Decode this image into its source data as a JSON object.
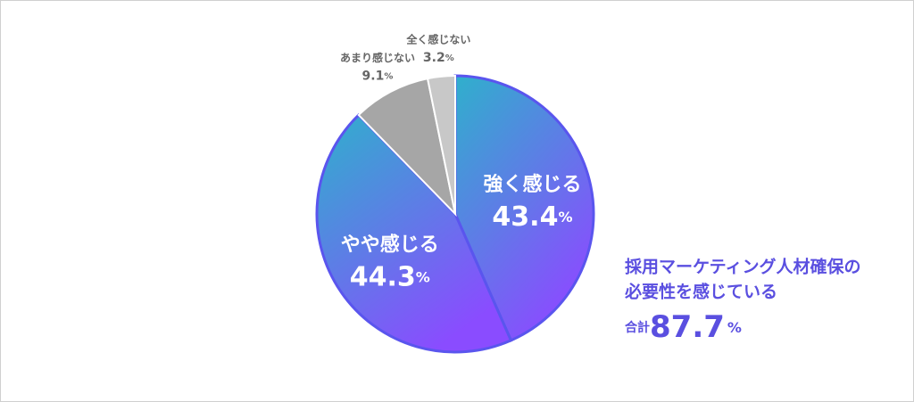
{
  "chart_data": {
    "type": "pie",
    "categories": [
      "強く感じる",
      "やや感じる",
      "あまり感じない",
      "全く感じない"
    ],
    "values": [
      43.4,
      44.3,
      9.1,
      3.2
    ],
    "unit": "%",
    "colors": [
      [
        "#2fb0cc",
        "#8a4cff"
      ],
      [
        "#2fb0cc",
        "#8a4cff"
      ],
      "#a6a6a6",
      "#c8c8c8"
    ],
    "annotation": {
      "lines": [
        "採用マーケティング人材確保の",
        "必要性を感じている"
      ],
      "total_label": "合計",
      "total": 87.7
    }
  }
}
